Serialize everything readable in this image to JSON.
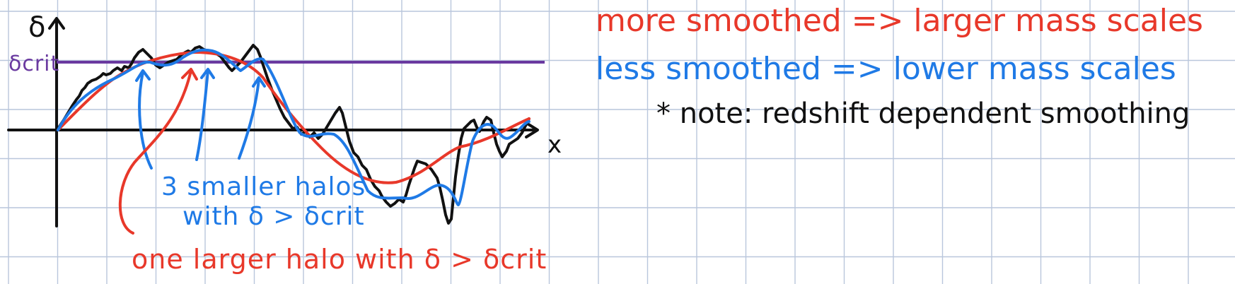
{
  "colors": {
    "grid": "#b9c6dc",
    "ink": "#111111",
    "red": "#e8382a",
    "blue": "#1f7ae6",
    "purple": "#6a3aa0",
    "paper": "#ffffff"
  },
  "sketch": {
    "y_axis_label": "δ",
    "x_axis_label": "x",
    "threshold_label": "δcrit",
    "blue_annotation_line1": "3 smaller halos",
    "blue_annotation_line2": "with δ > δcrit",
    "red_annotation": "one larger halo with δ > δcrit"
  },
  "notes": {
    "line1": "more smoothed => larger mass scales",
    "line2": "less smoothed => lower mass scales",
    "line3": "* note: redshift dependent smoothing"
  }
}
